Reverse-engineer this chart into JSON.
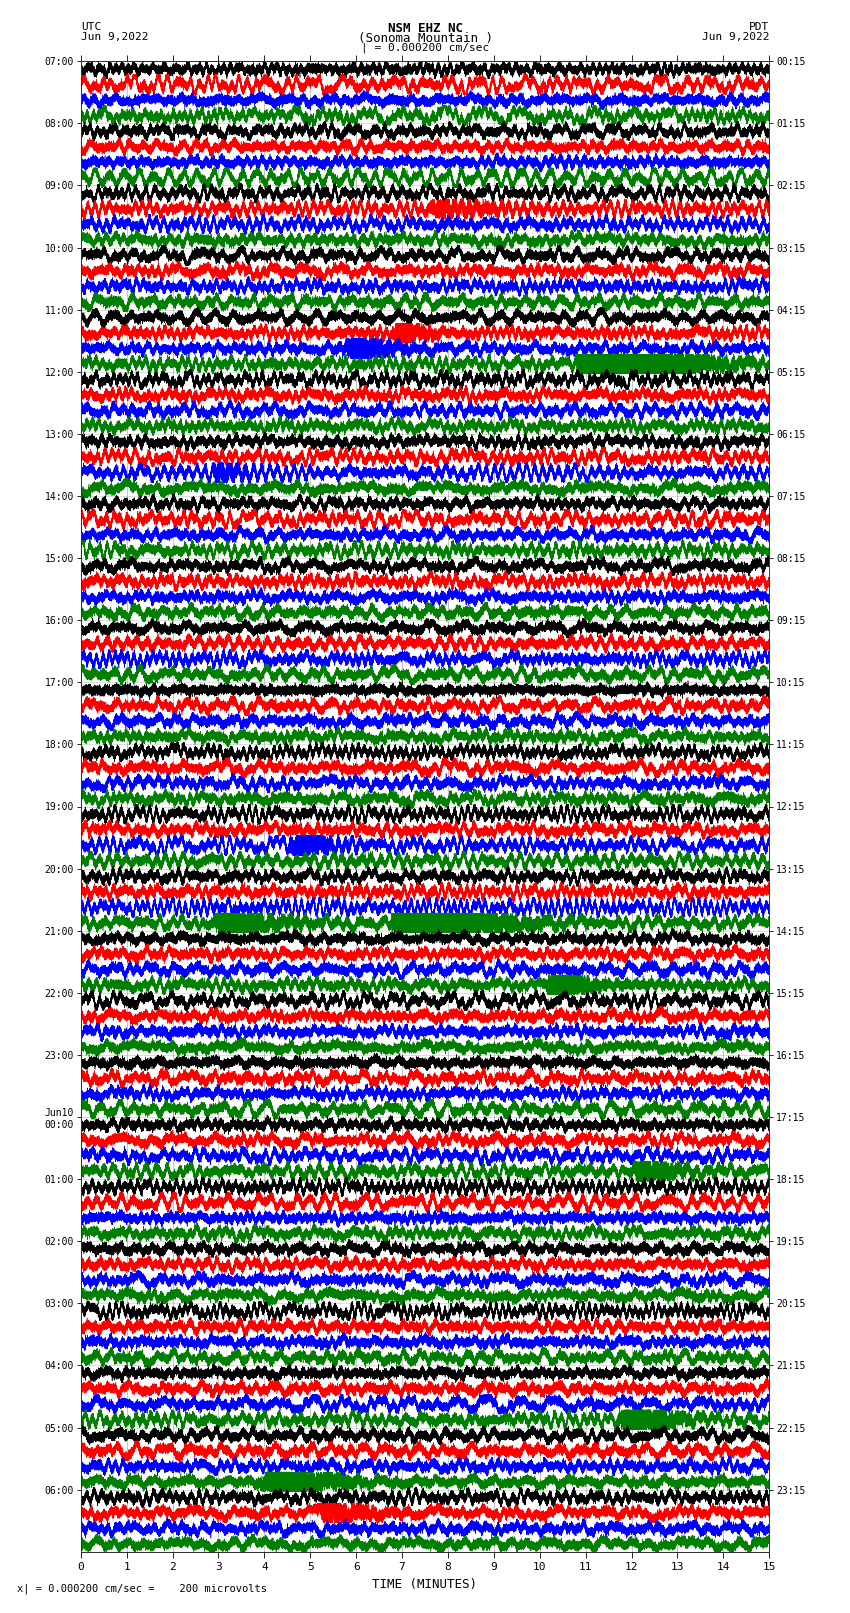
{
  "title_line1": "NSM EHZ NC",
  "title_line2": "(Sonoma Mountain )",
  "scale_label": "| = 0.000200 cm/sec",
  "left_label_line1": "UTC",
  "left_label_line2": "Jun 9,2022",
  "right_label_line1": "PDT",
  "right_label_line2": "Jun 9,2022",
  "xlabel": "TIME (MINUTES)",
  "footer": "x| = 0.000200 cm/sec =    200 microvolts",
  "left_times": [
    "07:00",
    "08:00",
    "09:00",
    "10:00",
    "11:00",
    "12:00",
    "13:00",
    "14:00",
    "15:00",
    "16:00",
    "17:00",
    "18:00",
    "19:00",
    "20:00",
    "21:00",
    "22:00",
    "23:00",
    "Jun10\n00:00",
    "01:00",
    "02:00",
    "03:00",
    "04:00",
    "05:00",
    "06:00"
  ],
  "right_times": [
    "00:15",
    "01:15",
    "02:15",
    "03:15",
    "04:15",
    "05:15",
    "06:15",
    "07:15",
    "08:15",
    "09:15",
    "10:15",
    "11:15",
    "12:15",
    "13:15",
    "14:15",
    "15:15",
    "16:15",
    "17:15",
    "18:15",
    "19:15",
    "20:15",
    "21:15",
    "22:15",
    "23:15"
  ],
  "num_rows": 24,
  "traces_per_row": 4,
  "trace_colors": [
    "black",
    "red",
    "blue",
    "green"
  ],
  "bg_color": "white",
  "plot_bg_color": "white",
  "xlim": [
    0,
    15
  ],
  "xticks": [
    0,
    1,
    2,
    3,
    4,
    5,
    6,
    7,
    8,
    9,
    10,
    11,
    12,
    13,
    14,
    15
  ],
  "figsize": [
    8.5,
    16.13
  ],
  "dpi": 100,
  "grid_color": "#888888",
  "spine_color": "#333333"
}
